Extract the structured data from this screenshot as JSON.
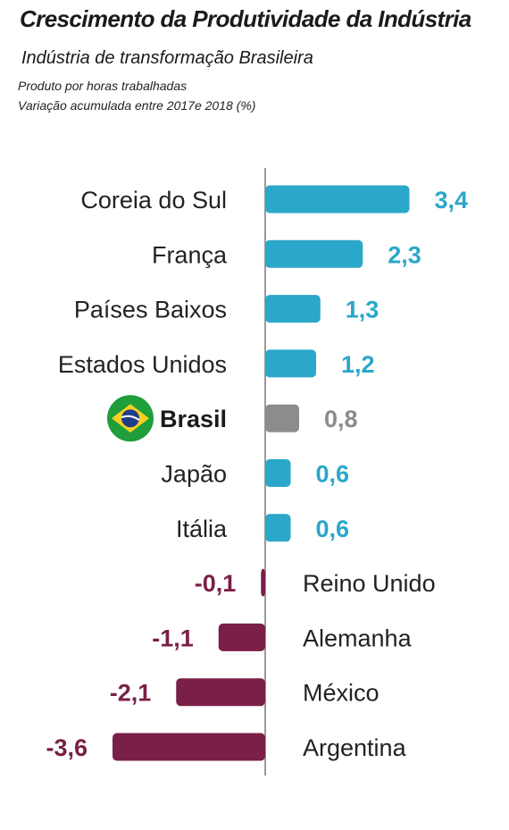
{
  "header": {
    "title": "Crescimento da Produtividade da Indústria",
    "subtitle": "Indústria de transformação  Brasileira",
    "note_line1": "Produto por horas trabalhadas",
    "note_line2": "Variação acumulada entre 2017e 2018 (%)"
  },
  "chart_data": {
    "type": "bar",
    "orientation": "horizontal",
    "categories": [
      "Coreia do Sul",
      "França",
      "Países Baixos",
      "Estados Unidos",
      "Brasil",
      "Japão",
      "Itália",
      "Reino Unido",
      "Alemanha",
      "México",
      "Argentina"
    ],
    "values": [
      3.4,
      2.3,
      1.3,
      1.2,
      0.8,
      0.6,
      0.6,
      -0.1,
      -1.1,
      -2.1,
      -3.6
    ],
    "value_labels": [
      "3,4",
      "2,3",
      "1,3",
      "1,2",
      "0,8",
      "0,6",
      "0,6",
      "-0,1",
      "-1,1",
      "-2,1",
      "-3,6"
    ],
    "highlight": "Brasil",
    "highlight_icon": "brazil-flag-icon",
    "colors": {
      "positive": "#2aa7c9",
      "highlight": "#8c8c8c",
      "negative": "#7a1f47"
    },
    "grid": false,
    "legend": "none"
  }
}
